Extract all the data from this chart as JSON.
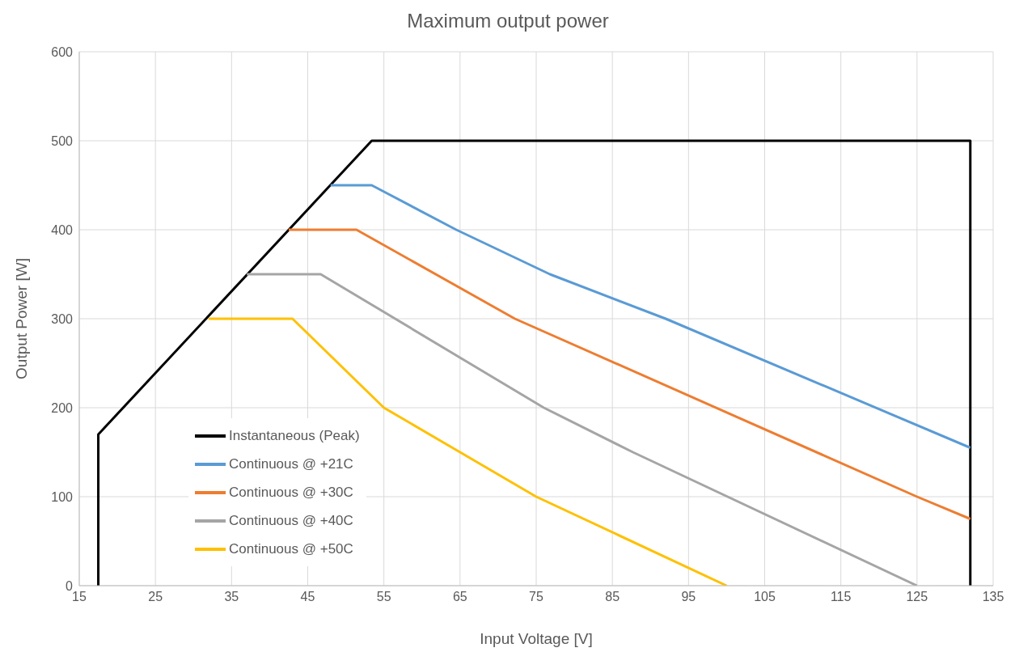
{
  "chart_data": {
    "type": "line",
    "title": "Maximum output power",
    "xlabel": "Input Voltage [V]",
    "ylabel": "Output Power [W]",
    "xlim": [
      15,
      135
    ],
    "xticks": [
      15,
      25,
      35,
      45,
      55,
      65,
      75,
      85,
      95,
      105,
      115,
      125,
      135
    ],
    "ylim": [
      0,
      600
    ],
    "yticks": [
      0,
      100,
      200,
      300,
      400,
      500,
      600
    ],
    "grid": true,
    "legend": "bottom left",
    "marker": "none",
    "line_style": "solid",
    "series": [
      {
        "name": "Instantaneous (Peak)",
        "color": "#000000",
        "x": [
          17.5,
          17.5,
          53.4,
          132,
          132
        ],
        "values": [
          0,
          170,
          500,
          500,
          0
        ]
      },
      {
        "name": "Continuous @ +21C",
        "color": "#5b9bd5",
        "x": [
          48,
          53.4,
          64.5,
          76.8,
          92,
          132
        ],
        "values": [
          450,
          450,
          400,
          350,
          300,
          155
        ]
      },
      {
        "name": "Continuous @ +30C",
        "color": "#ed7d31",
        "x": [
          42.5,
          51.4,
          72.2,
          125,
          132
        ],
        "values": [
          400,
          400,
          300,
          100,
          75
        ]
      },
      {
        "name": "Continuous @ +40C",
        "color": "#a5a5a5",
        "x": [
          37,
          46.7,
          76,
          87.7,
          125
        ],
        "values": [
          350,
          350,
          200,
          150,
          0
        ]
      },
      {
        "name": "Continuous @ +50C",
        "color": "#ffc000",
        "x": [
          32,
          43,
          49,
          55,
          65,
          75,
          100
        ],
        "values": [
          300,
          300,
          250,
          200,
          150,
          100,
          0
        ]
      }
    ]
  }
}
